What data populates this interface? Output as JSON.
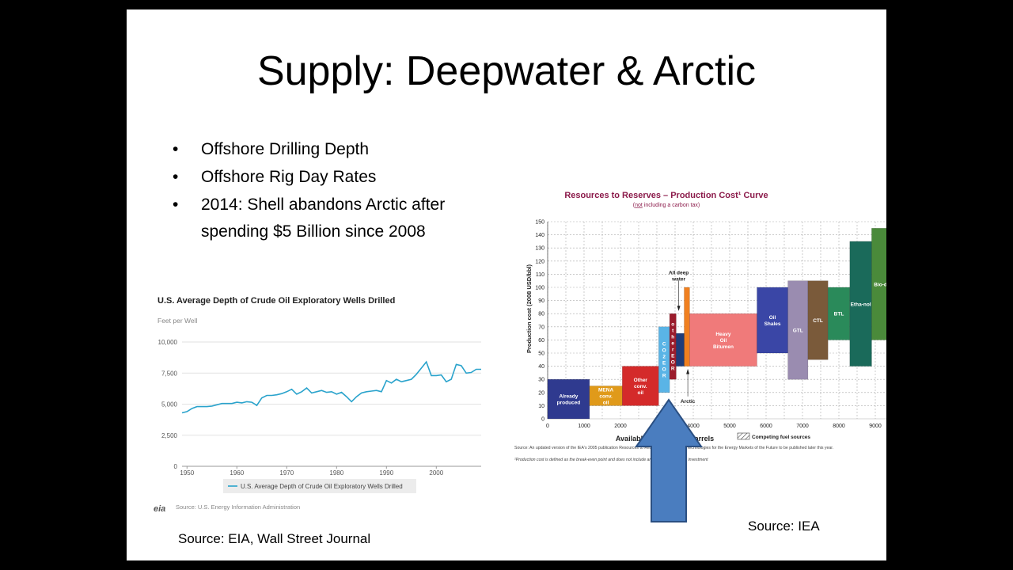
{
  "slide": {
    "title": "Supply: Deepwater & Arctic",
    "bullets": [
      "Offshore Drilling Depth",
      "Offshore Rig Day Rates",
      "2014: Shell abandons Arctic after spending $5 Billion since 2008"
    ],
    "source_left": "Source: EIA, Wall Street Journal",
    "source_right": "Source: IEA"
  },
  "chart_data": [
    {
      "type": "line",
      "title": "U.S. Average Depth of Crude Oil Exploratory Wells Drilled",
      "ylabel": "Feet per Well",
      "xlim": [
        1949,
        2009
      ],
      "ylim": [
        0,
        10000
      ],
      "x_ticks": [
        "1950",
        "1960",
        "1970",
        "1980",
        "1990",
        "2000"
      ],
      "y_ticks": [
        "0",
        "2,500",
        "5,000",
        "7,500",
        "10,000"
      ],
      "legend": "U.S. Average Depth of Crude Oil Exploratory Wells Drilled",
      "legend_position": "bottom",
      "grid": true,
      "source": "Source: U.S. Energy Information Administration",
      "logo_text": "eia",
      "color": "#2aa3cc",
      "series": [
        {
          "x": [
            1949,
            1950,
            1951,
            1952,
            1953,
            1954,
            1955,
            1956,
            1957,
            1958,
            1959,
            1960,
            1961,
            1962,
            1963,
            1964,
            1965,
            1966,
            1967,
            1968,
            1969,
            1970,
            1971,
            1972,
            1973,
            1974,
            1975,
            1976,
            1977,
            1978,
            1979,
            1980,
            1981,
            1982,
            1983,
            1984,
            1985,
            1986,
            1987,
            1988,
            1989,
            1990,
            1991,
            1992,
            1993,
            1994,
            1995,
            1996,
            1997,
            1998,
            1999,
            2000,
            2001,
            2002,
            2003,
            2004,
            2005,
            2006,
            2007,
            2008,
            2009
          ],
          "y": [
            4300,
            4400,
            4650,
            4800,
            4800,
            4800,
            4850,
            4950,
            5050,
            5050,
            5050,
            5150,
            5100,
            5200,
            5150,
            4900,
            5500,
            5700,
            5700,
            5750,
            5850,
            6000,
            6200,
            5800,
            6000,
            6300,
            5900,
            6000,
            6100,
            5950,
            6000,
            5800,
            5950,
            5600,
            5200,
            5600,
            5900,
            6000,
            6050,
            6100,
            6000,
            6900,
            6700,
            7000,
            6800,
            6900,
            7000,
            7400,
            7900,
            8400,
            7300,
            7300,
            7350,
            6800,
            7000,
            8200,
            8100,
            7500,
            7550,
            7800,
            7800
          ]
        }
      ]
    },
    {
      "type": "bar",
      "title": "Resources to Reserves – Production Cost¹ Curve",
      "subtitle_parts": [
        "(",
        "not",
        " including a carbon tax)"
      ],
      "ylabel": "Production cost (2008 USD/bbl)",
      "xlabel": "Available oil in billion barrels",
      "xlim": [
        0,
        9000
      ],
      "ylim": [
        0,
        150
      ],
      "x_ticks": [
        "0",
        "1000",
        "2000",
        "3000",
        "4000",
        "5000",
        "6000",
        "7000",
        "8000",
        "9000"
      ],
      "y_ticks": [
        "0",
        "10",
        "20",
        "30",
        "40",
        "50",
        "60",
        "70",
        "80",
        "90",
        "100",
        "110",
        "120",
        "130",
        "140",
        "150"
      ],
      "legend": "Competing fuel sources",
      "grid": true,
      "source_note": "Source: An updated version of the IEA's 2005 publication Resources to Reserves: Oil and Gas Technologies for the Energy Markets of the Future to be published later this year.",
      "footnote": "¹Production cost is defined as the break-even point and does not include an assumed return on investment",
      "blocks": [
        {
          "label": "Already produced",
          "x0": 0,
          "x1": 1150,
          "y0": 0,
          "y1": 30,
          "color": "#2f3a8f"
        },
        {
          "label": "MENA conv. oil",
          "x0": 1150,
          "x1": 2050,
          "y0": 10,
          "y1": 25,
          "color": "#e09a1a"
        },
        {
          "label": "Other conv. oil",
          "x0": 2050,
          "x1": 3050,
          "y0": 10,
          "y1": 40,
          "color": "#d42a2a"
        },
        {
          "label": "CO2 EOR",
          "x0": 3050,
          "x1": 3350,
          "y0": 20,
          "y1": 70,
          "color": "#5ab4e6"
        },
        {
          "label": "other EOR",
          "x0": 3350,
          "x1": 3530,
          "y0": 30,
          "y1": 80,
          "color": "#9b1c2c"
        },
        {
          "label": "",
          "x0": 3530,
          "x1": 3750,
          "y0": 40,
          "y1": 65,
          "color": "#1f3d7a"
        },
        {
          "label": "",
          "x0": 3750,
          "x1": 3900,
          "y0": 40,
          "y1": 100,
          "color": "#f08020"
        },
        {
          "label": "Heavy Oil Bitumen",
          "x0": 3900,
          "x1": 5750,
          "y0": 40,
          "y1": 80,
          "color": "#f07a7a"
        },
        {
          "label": "Oil Shales",
          "x0": 5750,
          "x1": 6600,
          "y0": 50,
          "y1": 100,
          "color": "#3a46a6"
        },
        {
          "label": "GTL",
          "x0": 6600,
          "x1": 7150,
          "y0": 30,
          "y1": 105,
          "color": "#9a8cb0"
        },
        {
          "label": "CTL",
          "x0": 7150,
          "x1": 7700,
          "y0": 45,
          "y1": 105,
          "color": "#7a5a3a"
        },
        {
          "label": "BTL",
          "x0": 7700,
          "x1": 8300,
          "y0": 60,
          "y1": 100,
          "color": "#2a8a5a"
        },
        {
          "label": "Etha-nol",
          "x0": 8300,
          "x1": 8900,
          "y0": 40,
          "y1": 135,
          "color": "#1a6a5a"
        },
        {
          "label": "Bio-diesel",
          "x0": 8900,
          "x1": 9700,
          "y0": 60,
          "y1": 145,
          "color": "#4a8a3a"
        }
      ],
      "annotations": [
        {
          "label": "All deep water",
          "x": 3600,
          "y": 110
        },
        {
          "label": "Arctic",
          "x": 3850,
          "y": 12
        }
      ]
    }
  ]
}
